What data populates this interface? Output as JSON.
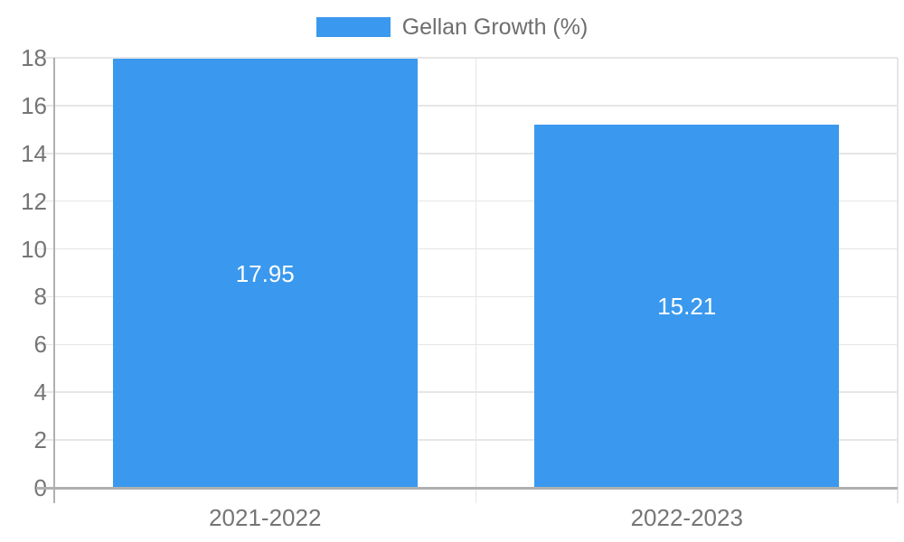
{
  "chart_data": {
    "type": "bar",
    "title": "",
    "legend": "Gellan Growth (%)",
    "legend_position": "top-center",
    "categories": [
      "2021-2022",
      "2022-2023"
    ],
    "series": [
      {
        "name": "Gellan Growth (%)",
        "values": [
          17.95,
          15.21
        ]
      }
    ],
    "value_labels": [
      "17.95",
      "15.21"
    ],
    "yticks": [
      0,
      2,
      4,
      6,
      8,
      10,
      12,
      14,
      16,
      18
    ],
    "ylim": [
      0,
      18
    ],
    "grid": true,
    "colors": {
      "bar": "#3A99EE",
      "grid": "#E6E6E6",
      "axis": "#B0B0B0",
      "tick_text": "#757575",
      "legend_text": "#6E6E6E",
      "value_text": "#FFFFFF",
      "background": "#FFFFFF"
    }
  }
}
